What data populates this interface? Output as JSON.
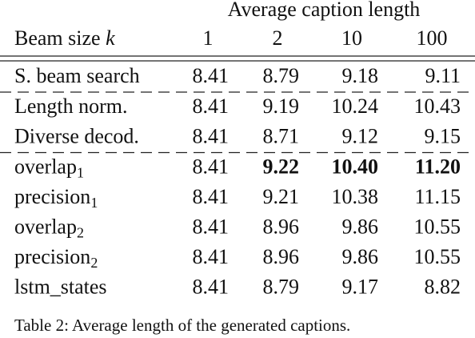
{
  "table": {
    "group_header": "Average caption length",
    "row_header": {
      "text": "Beam size",
      "var": "k"
    },
    "columns": [
      "1",
      "2",
      "10",
      "100"
    ],
    "sections": [
      [
        {
          "label": "S. beam search",
          "values": [
            "8.41",
            "8.79",
            "9.18",
            "9.11"
          ]
        }
      ],
      [
        {
          "label": "Length norm.",
          "values": [
            "8.41",
            "9.19",
            "10.24",
            "10.43"
          ]
        },
        {
          "label": "Diverse decod.",
          "values": [
            "8.41",
            "8.71",
            "9.12",
            "9.15"
          ]
        }
      ],
      [
        {
          "label": "overlap",
          "sub": "1",
          "values": [
            "8.41",
            "9.22",
            "10.40",
            "11.20"
          ],
          "bold": [
            false,
            true,
            true,
            true
          ]
        },
        {
          "label": "precision",
          "sub": "1",
          "values": [
            "8.41",
            "9.21",
            "10.38",
            "11.15"
          ]
        },
        {
          "label": "overlap",
          "sub": "2",
          "values": [
            "8.41",
            "8.96",
            "9.86",
            "10.55"
          ]
        },
        {
          "label": "precision",
          "sub": "2",
          "values": [
            "8.41",
            "8.96",
            "9.86",
            "10.55"
          ]
        },
        {
          "label": "lstm_states",
          "values": [
            "8.41",
            "8.79",
            "9.17",
            "8.82"
          ]
        }
      ]
    ],
    "caption": "Table 2: Average length of the generated captions."
  }
}
